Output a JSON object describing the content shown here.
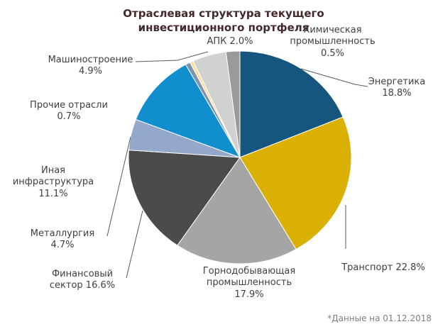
{
  "title": "Отраслевая структура текущего\nинвестиционного портфеля",
  "footnote": "*Данные на 01.12.2018",
  "chart_data": {
    "type": "pie",
    "title": "Отраслевая структура текущего инвестиционного портфеля",
    "start_angle_deg": 0,
    "direction": "clockwise",
    "total": 100.0,
    "slices": [
      {
        "id": "energy",
        "label": "Энергетика",
        "value": 18.8,
        "color": "#16567e"
      },
      {
        "id": "transport",
        "label": "Транспорт",
        "value": 22.8,
        "color": "#dbb004"
      },
      {
        "id": "mining",
        "label": "Горнодобывающая промышленность",
        "value": 17.9,
        "color": "#a5a5a5"
      },
      {
        "id": "finance",
        "label": "Финансовый сектор",
        "value": 16.6,
        "color": "#4b4b4b"
      },
      {
        "id": "metallurgy",
        "label": "Металлургия",
        "value": 4.7,
        "color": "#94a8cb"
      },
      {
        "id": "other-infra",
        "label": "Иная инфраструктура",
        "value": 11.1,
        "color": "#108ecd"
      },
      {
        "id": "other",
        "label": "Прочие отрасли",
        "value": 0.7,
        "color": "#7e92b1"
      },
      {
        "id": "chemical",
        "label": "Химическая промышленность",
        "value": 0.5,
        "color": "#fcdf9c"
      },
      {
        "id": "machinery",
        "label": "Машиностроение",
        "value": 4.9,
        "color": "#d1d1d1"
      },
      {
        "id": "apk",
        "label": "АПК",
        "value": 2.0,
        "color": "#9a9a9a"
      }
    ],
    "callouts": {
      "apk": "АПК 2.0%",
      "chemical": "Химическая\nпромышленность\n0.5%",
      "energy": "Энергетика\n18.8%",
      "transport": "Транспорт 22.8%",
      "mining": "Горнодобывающая\nпромышленность\n17.9%",
      "finance": "Финансовый\nсектор 16.6%",
      "metallurgy": "Металлургия\n4.7%",
      "infra": "Иная\nинфраструктура\n11.1%",
      "other": "Прочие отрасли\n0.7%",
      "machinery": "Машиностроение\n4.9%"
    }
  }
}
